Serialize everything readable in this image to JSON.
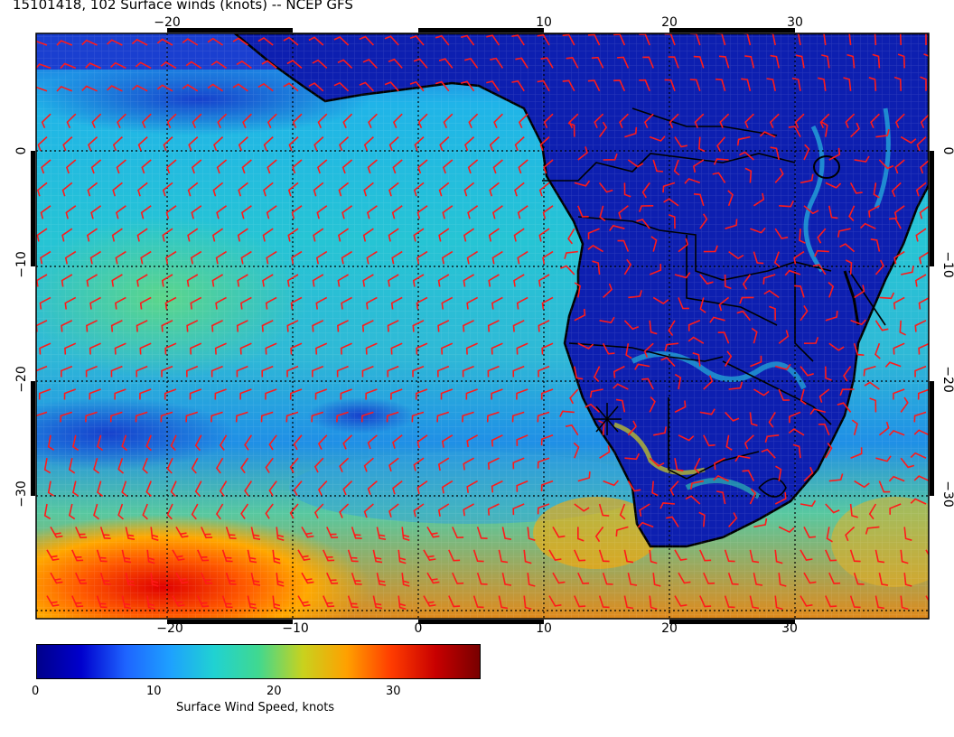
{
  "title": "15101418, 102 Surface winds (knots) -- NCEP GFS",
  "map": {
    "region": "South Atlantic and southern Africa",
    "lon_ticks": [
      "−20",
      "−10",
      "0",
      "10",
      "20",
      "30"
    ],
    "lat_ticks": [
      "0",
      "−10",
      "−20",
      "−30"
    ],
    "storm_marker_icon": "storm-symbol-icon",
    "barb_color": "#ff1a1a",
    "coastline_color": "#000000"
  },
  "colorbar": {
    "ticks": [
      "0",
      "10",
      "20",
      "30"
    ],
    "label": "Surface Wind Speed, knots",
    "colors": [
      "#00008b",
      "#0000cd",
      "#1e64ff",
      "#1ea0ff",
      "#20d2d2",
      "#40d890",
      "#c8d21e",
      "#ffa000",
      "#ff3c00",
      "#c80000",
      "#780000"
    ]
  }
}
